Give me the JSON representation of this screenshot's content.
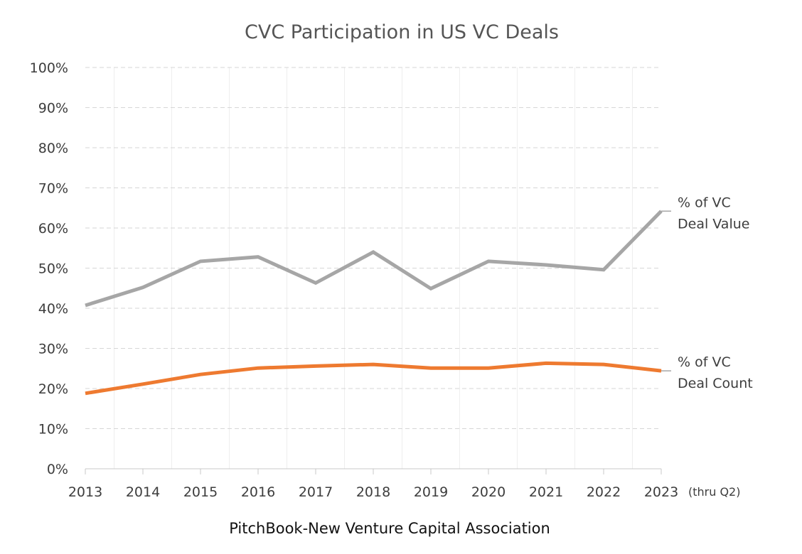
{
  "chart_data": {
    "type": "line",
    "title": "CVC Participation in US VC Deals",
    "categories": [
      "2013",
      "2014",
      "2015",
      "2016",
      "2017",
      "2018",
      "2019",
      "2020",
      "2021",
      "2022",
      "2023"
    ],
    "x_note": "(thru Q2)",
    "ylim": [
      0,
      100
    ],
    "y_ticks": [
      0,
      10,
      20,
      30,
      40,
      50,
      60,
      70,
      80,
      90,
      100
    ],
    "y_tick_labels": [
      "0%",
      "10%",
      "20%",
      "30%",
      "40%",
      "50%",
      "60%",
      "70%",
      "80%",
      "90%",
      "100%"
    ],
    "xlabel": "",
    "ylabel": "",
    "grid": true,
    "legend_placement": "right, at line ends",
    "series": [
      {
        "name": "% of VC Deal Value",
        "label_lines": [
          "% of VC",
          "Deal Value"
        ],
        "color": "#a6a6a6",
        "values": [
          40.7,
          45.2,
          51.7,
          52.8,
          46.3,
          54.0,
          44.9,
          51.7,
          50.8,
          49.6,
          64.2
        ]
      },
      {
        "name": "% of VC Deal Count",
        "label_lines": [
          "% of VC",
          "Deal Count"
        ],
        "color": "#ee7a30",
        "values": [
          18.8,
          21.1,
          23.5,
          25.1,
          25.6,
          26.0,
          25.1,
          25.1,
          26.3,
          26.0,
          24.4
        ]
      }
    ]
  },
  "source": "PitchBook-New Venture Capital Association"
}
